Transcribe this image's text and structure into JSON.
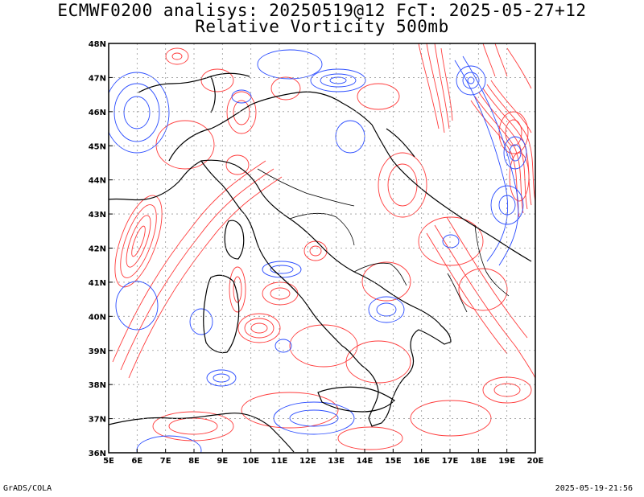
{
  "title_line1": "ECMWF0200 analisys: 20250519@12 FcT: 2025-05-27+12",
  "title_line2": "Relative Vorticity 500mb",
  "credit": "GrADS/COLA",
  "timestamp": "2025-05-19-21:56",
  "map": {
    "lon_ticks": [
      "5E",
      "6E",
      "7E",
      "8E",
      "9E",
      "10E",
      "11E",
      "12E",
      "13E",
      "14E",
      "15E",
      "16E",
      "17E",
      "18E",
      "19E",
      "20E"
    ],
    "lat_ticks": [
      "36N",
      "37N",
      "38N",
      "39N",
      "40N",
      "41N",
      "42N",
      "43N",
      "44N",
      "45N",
      "46N",
      "47N",
      "48N"
    ],
    "lon_range": [
      5,
      20
    ],
    "lat_range": [
      36,
      48
    ],
    "grid": true,
    "colors": {
      "positive": "#ff3b3b",
      "negative": "#2a4cff",
      "border": "#000000",
      "grid": "#9a9a9a"
    }
  }
}
